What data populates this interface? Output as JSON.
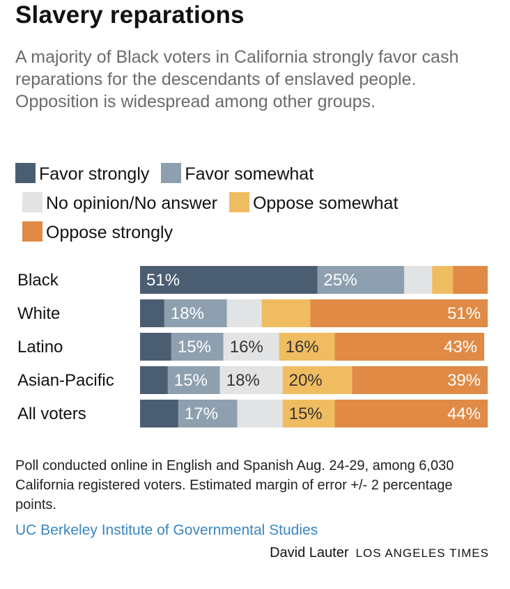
{
  "header": {
    "title": "Slavery reparations",
    "subtitle": "A majority of Black voters in California strongly favor cash reparations for the descendants of enslaved people. Opposition is widespread among other groups."
  },
  "legend": [
    {
      "label": "Favor strongly",
      "color": "#4b5e71"
    },
    {
      "label": "Favor somewhat",
      "color": "#8ea0b0"
    },
    {
      "label": "No opinion/No answer",
      "color": "#e2e3e4"
    },
    {
      "label": "Oppose somewhat",
      "color": "#f0bc61"
    },
    {
      "label": "Oppose strongly",
      "color": "#e08a45"
    }
  ],
  "chart_data": {
    "type": "bar",
    "orientation": "horizontal",
    "stacked": true,
    "categories": [
      "Black",
      "White",
      "Latino",
      "Asian-Pacific",
      "All voters"
    ],
    "series": [
      {
        "name": "Favor strongly",
        "values": [
          51,
          7,
          9,
          8,
          11
        ],
        "labels": [
          "51%",
          "",
          "",
          "",
          ""
        ]
      },
      {
        "name": "Favor somewhat",
        "values": [
          25,
          18,
          15,
          15,
          17
        ],
        "labels": [
          "25%",
          "18%",
          "15%",
          "15%",
          "17%"
        ]
      },
      {
        "name": "No opinion/No answer",
        "values": [
          8,
          10,
          16,
          18,
          13
        ],
        "labels": [
          "",
          "",
          "16%",
          "18%",
          ""
        ]
      },
      {
        "name": "Oppose somewhat",
        "values": [
          6,
          14,
          16,
          20,
          15
        ],
        "labels": [
          "",
          "",
          "16%",
          "20%",
          "15%"
        ]
      },
      {
        "name": "Oppose strongly",
        "values": [
          10,
          51,
          43,
          39,
          44
        ],
        "labels": [
          "",
          "51%",
          "43%",
          "39%",
          "44%"
        ]
      }
    ],
    "xlim": [
      0,
      100
    ],
    "label_colors": [
      "#ffffff",
      "#ffffff",
      "#333333",
      "#333333",
      "#ffffff"
    ]
  },
  "notes": "Poll conducted online in English and Spanish Aug. 24-29, among 6,030 California registered voters. Estimated margin of error +/- 2 percentage points.",
  "source": "UC Berkeley Institute of Governmental Studies",
  "credit": {
    "author": "David Lauter",
    "publisher": "LOS ANGELES TIMES"
  }
}
